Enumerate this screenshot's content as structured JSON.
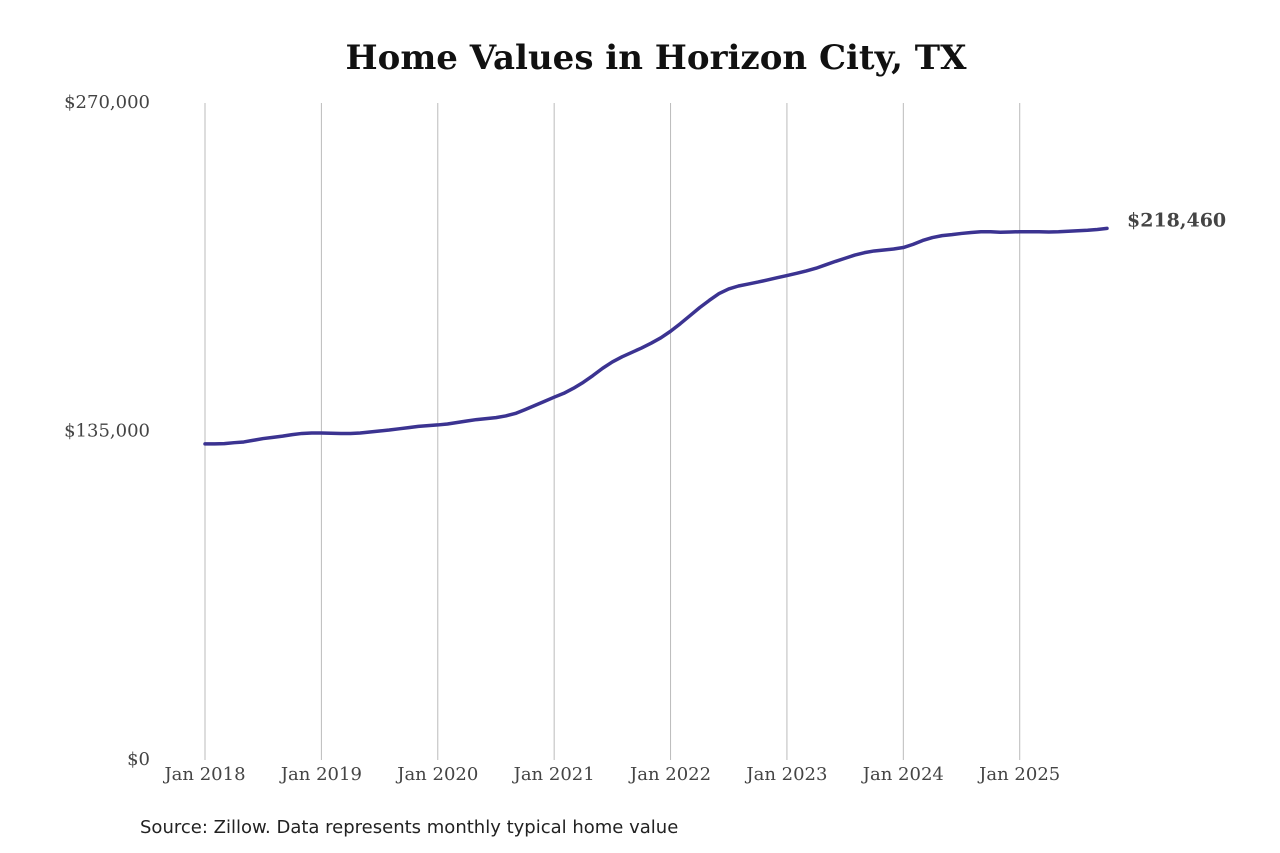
{
  "chart_data": {
    "type": "line",
    "title": "Home Values in Horizon City, TX",
    "source": "Source: Zillow. Data represents monthly typical home value",
    "x": [
      "2018-01",
      "2018-02",
      "2018-03",
      "2018-04",
      "2018-05",
      "2018-06",
      "2018-07",
      "2018-08",
      "2018-09",
      "2018-10",
      "2018-11",
      "2018-12",
      "2019-01",
      "2019-02",
      "2019-03",
      "2019-04",
      "2019-05",
      "2019-06",
      "2019-07",
      "2019-08",
      "2019-09",
      "2019-10",
      "2019-11",
      "2019-12",
      "2020-01",
      "2020-02",
      "2020-03",
      "2020-04",
      "2020-05",
      "2020-06",
      "2020-07",
      "2020-08",
      "2020-09",
      "2020-10",
      "2020-11",
      "2020-12",
      "2021-01",
      "2021-02",
      "2021-03",
      "2021-04",
      "2021-05",
      "2021-06",
      "2021-07",
      "2021-08",
      "2021-09",
      "2021-10",
      "2021-11",
      "2021-12",
      "2022-01",
      "2022-02",
      "2022-03",
      "2022-04",
      "2022-05",
      "2022-06",
      "2022-07",
      "2022-08",
      "2022-09",
      "2022-10",
      "2022-11",
      "2022-12",
      "2023-01",
      "2023-02",
      "2023-03",
      "2023-04",
      "2023-05",
      "2023-06",
      "2023-07",
      "2023-08",
      "2023-09",
      "2023-10",
      "2023-11",
      "2023-12",
      "2024-01",
      "2024-02",
      "2024-03",
      "2024-04",
      "2024-05",
      "2024-06",
      "2024-07",
      "2024-08",
      "2024-09",
      "2024-10",
      "2024-11",
      "2024-12",
      "2025-01",
      "2025-02",
      "2025-03",
      "2025-04",
      "2025-05",
      "2025-06",
      "2025-07",
      "2025-08",
      "2025-09",
      "2025-10"
    ],
    "values": [
      129900,
      129900,
      130000,
      130400,
      130700,
      131400,
      132100,
      132600,
      133100,
      133700,
      134200,
      134400,
      134400,
      134300,
      134200,
      134200,
      134400,
      134800,
      135200,
      135600,
      136100,
      136600,
      137100,
      137400,
      137700,
      138100,
      138700,
      139300,
      139900,
      140300,
      140700,
      141400,
      142400,
      144000,
      145700,
      147400,
      149100,
      150700,
      152800,
      155200,
      158000,
      161000,
      163600,
      165700,
      167500,
      169300,
      171300,
      173500,
      176200,
      179300,
      182600,
      185900,
      188900,
      191700,
      193600,
      194800,
      195600,
      196400,
      197300,
      198200,
      199100,
      200000,
      201000,
      202100,
      203500,
      204900,
      206200,
      207500,
      208500,
      209200,
      209600,
      210000,
      210600,
      211900,
      213500,
      214700,
      215500,
      215900,
      216400,
      216800,
      217100,
      217100,
      216900,
      217000,
      217100,
      217100,
      217100,
      217000,
      217100,
      217300,
      217500,
      217700,
      218000,
      218460
    ],
    "value_labels": [
      null,
      null,
      null,
      null,
      null,
      null,
      null,
      null,
      null,
      null,
      null,
      null,
      null,
      null,
      null,
      null,
      null,
      null,
      null,
      null,
      null,
      null,
      null,
      null,
      null,
      null,
      null,
      null,
      null,
      null,
      null,
      null,
      null,
      null,
      null,
      null,
      null,
      null,
      null,
      null,
      null,
      null,
      null,
      null,
      null,
      null,
      null,
      null,
      null,
      null,
      null,
      null,
      null,
      null,
      null,
      null,
      null,
      null,
      null,
      null,
      null,
      null,
      null,
      null,
      null,
      null,
      null,
      null,
      null,
      null,
      null,
      null,
      null,
      null,
      null,
      null,
      null,
      null,
      null,
      null,
      null,
      null,
      null,
      null,
      null,
      null,
      null,
      null,
      null,
      null,
      null,
      null,
      null,
      "$218,460"
    ],
    "color": "#3b3391",
    "xlim": [
      "2018-01",
      "2025-10"
    ],
    "xticks": [
      {
        "value": "2018-01",
        "label": "Jan 2018"
      },
      {
        "value": "2019-01",
        "label": "Jan 2019"
      },
      {
        "value": "2020-01",
        "label": "Jan 2020"
      },
      {
        "value": "2021-01",
        "label": "Jan 2021"
      },
      {
        "value": "2022-01",
        "label": "Jan 2022"
      },
      {
        "value": "2023-01",
        "label": "Jan 2023"
      },
      {
        "value": "2024-01",
        "label": "Jan 2024"
      },
      {
        "value": "2025-01",
        "label": "Jan 2025"
      }
    ],
    "ylim": [
      0,
      270000
    ],
    "yticks": [
      {
        "value": 0,
        "label": "$0"
      },
      {
        "value": 135000,
        "label": "$135,000"
      },
      {
        "value": 270000,
        "label": "$270,000"
      }
    ],
    "xgrid": true
  }
}
